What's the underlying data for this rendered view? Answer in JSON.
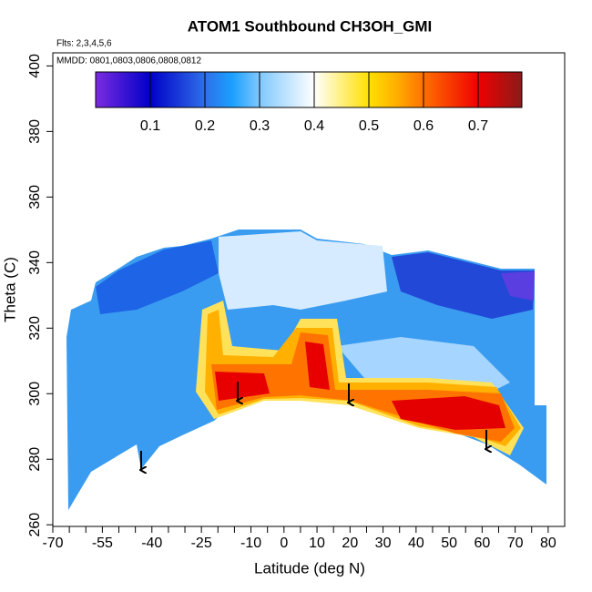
{
  "chart_data": {
    "type": "curtain",
    "title": "ATOM1 Southbound CH3OH_GMI",
    "subtitle": "Flts: 2,3,4,5,6",
    "annotation": "MMDD: 0801,0803,0806,0808,0812",
    "xlabel": "Latitude (deg N)",
    "ylabel": "Theta (C)",
    "xlim": [
      -70,
      85
    ],
    "xticks": [
      -70,
      -55,
      -40,
      -25,
      -10,
      0,
      10,
      20,
      30,
      40,
      50,
      60,
      70,
      80
    ],
    "xminorticks": [
      -65,
      -60,
      -50,
      -45,
      -35,
      -30,
      -20,
      -15,
      -5,
      5,
      15,
      25,
      35,
      45,
      55,
      65,
      75
    ],
    "ylim": [
      259.5,
      404
    ],
    "yticks": [
      260,
      280,
      300,
      320,
      340,
      360,
      380,
      400
    ],
    "clim": [
      0,
      0.78
    ],
    "cticks": [
      0.1,
      0.2,
      0.3,
      0.4,
      0.5,
      0.6,
      0.7
    ],
    "colorscale": [
      [
        0,
        "#7b2be0"
      ],
      [
        0.1,
        "#0000c8"
      ],
      [
        0.2,
        "#2f6fe8"
      ],
      [
        0.25,
        "#1aa0ff"
      ],
      [
        0.3,
        "#80c8ff"
      ],
      [
        0.4,
        "#ffffff"
      ],
      [
        0.5,
        "#ffe000"
      ],
      [
        0.55,
        "#ffb000"
      ],
      [
        0.6,
        "#ff7000"
      ],
      [
        0.7,
        "#f00000"
      ],
      [
        0.78,
        "#8b1a1a"
      ]
    ]
  }
}
